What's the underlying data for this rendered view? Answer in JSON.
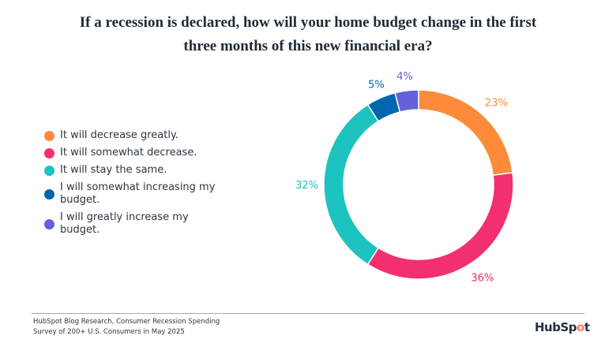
{
  "title_line1": "If a recession is declared, how will your home budget change in the first",
  "title_line2": "three months of this new financial era?",
  "chart_data": {
    "type": "pie",
    "variant": "donut",
    "start": "top, clockwise",
    "categories": [
      "It will decrease greatly.",
      "It will somewhat decrease.",
      "It will stay the same.",
      "I will somewhat increasing my budget.",
      "I will greatly increase my budget."
    ],
    "values": [
      23,
      36,
      32,
      5,
      4
    ],
    "labels": [
      "23%",
      "36%",
      "32%",
      "5%",
      "4%"
    ],
    "colors": [
      "#fe8b3a",
      "#f2306f",
      "#1dc3bf",
      "#0066ae",
      "#6660dc"
    ],
    "legend_placement": "left"
  },
  "source_line1": "HubSpot Blog Research, Consumer Recession Spending",
  "source_line2": "Survey of 200+ U.S. Consumers in May 2025",
  "logo": "HubSpot"
}
